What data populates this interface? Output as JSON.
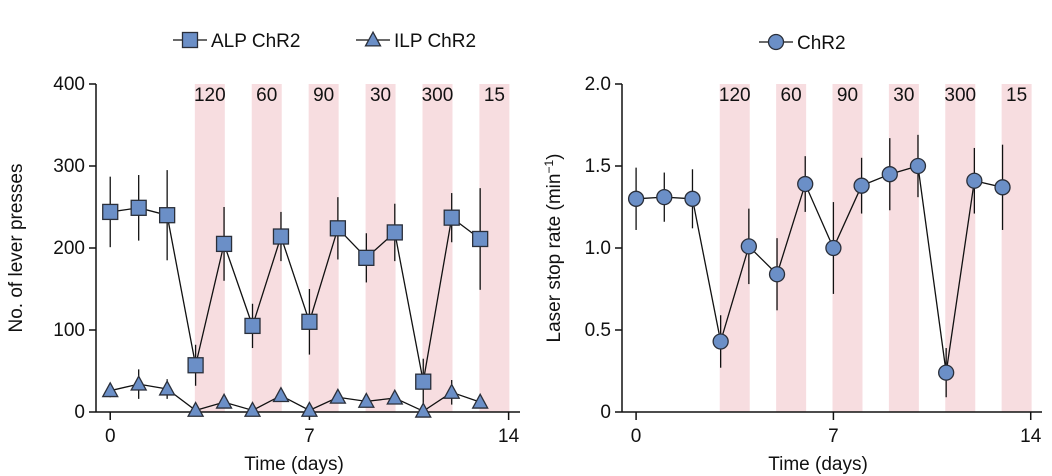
{
  "colors": {
    "marker_fill": "#6b8fc7",
    "marker_stroke": "#2a2f3a",
    "line": "#111111",
    "band": "#f7dde0",
    "axis": "#111111"
  },
  "chart_data": [
    {
      "type": "line",
      "xlabel": "Time (days)",
      "ylabel": "No. of lever presses",
      "xlim": [
        -0.5,
        14.4
      ],
      "ylim": [
        0,
        400
      ],
      "xticks": [
        0,
        7,
        14
      ],
      "yticks": [
        0,
        100,
        200,
        300,
        400
      ],
      "legend_position": "top",
      "shaded_bands": [
        {
          "x": 3,
          "label": "120"
        },
        {
          "x": 5,
          "label": "60"
        },
        {
          "x": 7,
          "label": "90"
        },
        {
          "x": 9,
          "label": "30"
        },
        {
          "x": 11,
          "label": "300"
        },
        {
          "x": 13,
          "label": "15"
        }
      ],
      "series": [
        {
          "name": "ALP ChR2",
          "marker": "square",
          "x": [
            0,
            1,
            2,
            3,
            4,
            5,
            6,
            7,
            8,
            9,
            10,
            11,
            12,
            13
          ],
          "values": [
            244,
            249,
            240,
            57,
            205,
            105,
            214,
            110,
            224,
            188,
            219,
            37,
            237,
            211
          ],
          "errors": [
            43,
            40,
            55,
            25,
            45,
            27,
            30,
            40,
            38,
            30,
            35,
            28,
            30,
            62
          ]
        },
        {
          "name": "ILP ChR2",
          "marker": "triangle",
          "x": [
            0,
            1,
            2,
            3,
            4,
            5,
            6,
            7,
            8,
            9,
            10,
            11,
            12,
            13
          ],
          "values": [
            26,
            34,
            28,
            2,
            12,
            2,
            20,
            2,
            18,
            13,
            17,
            1,
            24,
            12
          ],
          "errors": [
            8,
            18,
            12,
            2,
            5,
            2,
            6,
            2,
            6,
            5,
            6,
            1,
            15,
            6
          ]
        }
      ]
    },
    {
      "type": "line",
      "xlabel": "Time (days)",
      "ylabel": "Laser stop rate (min",
      "ylabel_sup": "−1",
      "ylabel_tail": ")",
      "xlim": [
        -0.5,
        14.4
      ],
      "ylim": [
        0,
        2.0
      ],
      "xticks": [
        0,
        7,
        14
      ],
      "yticks": [
        0,
        0.5,
        1.0,
        1.5,
        2.0
      ],
      "ytick_labels": [
        "0",
        "0.5",
        "1.0",
        "1.5",
        "2.0"
      ],
      "legend_position": "top",
      "shaded_bands": [
        {
          "x": 3,
          "label": "120"
        },
        {
          "x": 5,
          "label": "60"
        },
        {
          "x": 7,
          "label": "90"
        },
        {
          "x": 9,
          "label": "30"
        },
        {
          "x": 11,
          "label": "300"
        },
        {
          "x": 13,
          "label": "15"
        }
      ],
      "series": [
        {
          "name": "ChR2",
          "marker": "circle",
          "x": [
            0,
            1,
            2,
            3,
            4,
            5,
            6,
            7,
            8,
            9,
            10,
            11,
            12,
            13
          ],
          "values": [
            1.3,
            1.31,
            1.3,
            0.43,
            1.01,
            0.84,
            1.39,
            1.0,
            1.38,
            1.45,
            1.5,
            0.24,
            1.41,
            1.37
          ],
          "errors": [
            0.19,
            0.15,
            0.18,
            0.16,
            0.23,
            0.22,
            0.17,
            0.28,
            0.17,
            0.22,
            0.19,
            0.15,
            0.2,
            0.26
          ]
        }
      ]
    }
  ]
}
